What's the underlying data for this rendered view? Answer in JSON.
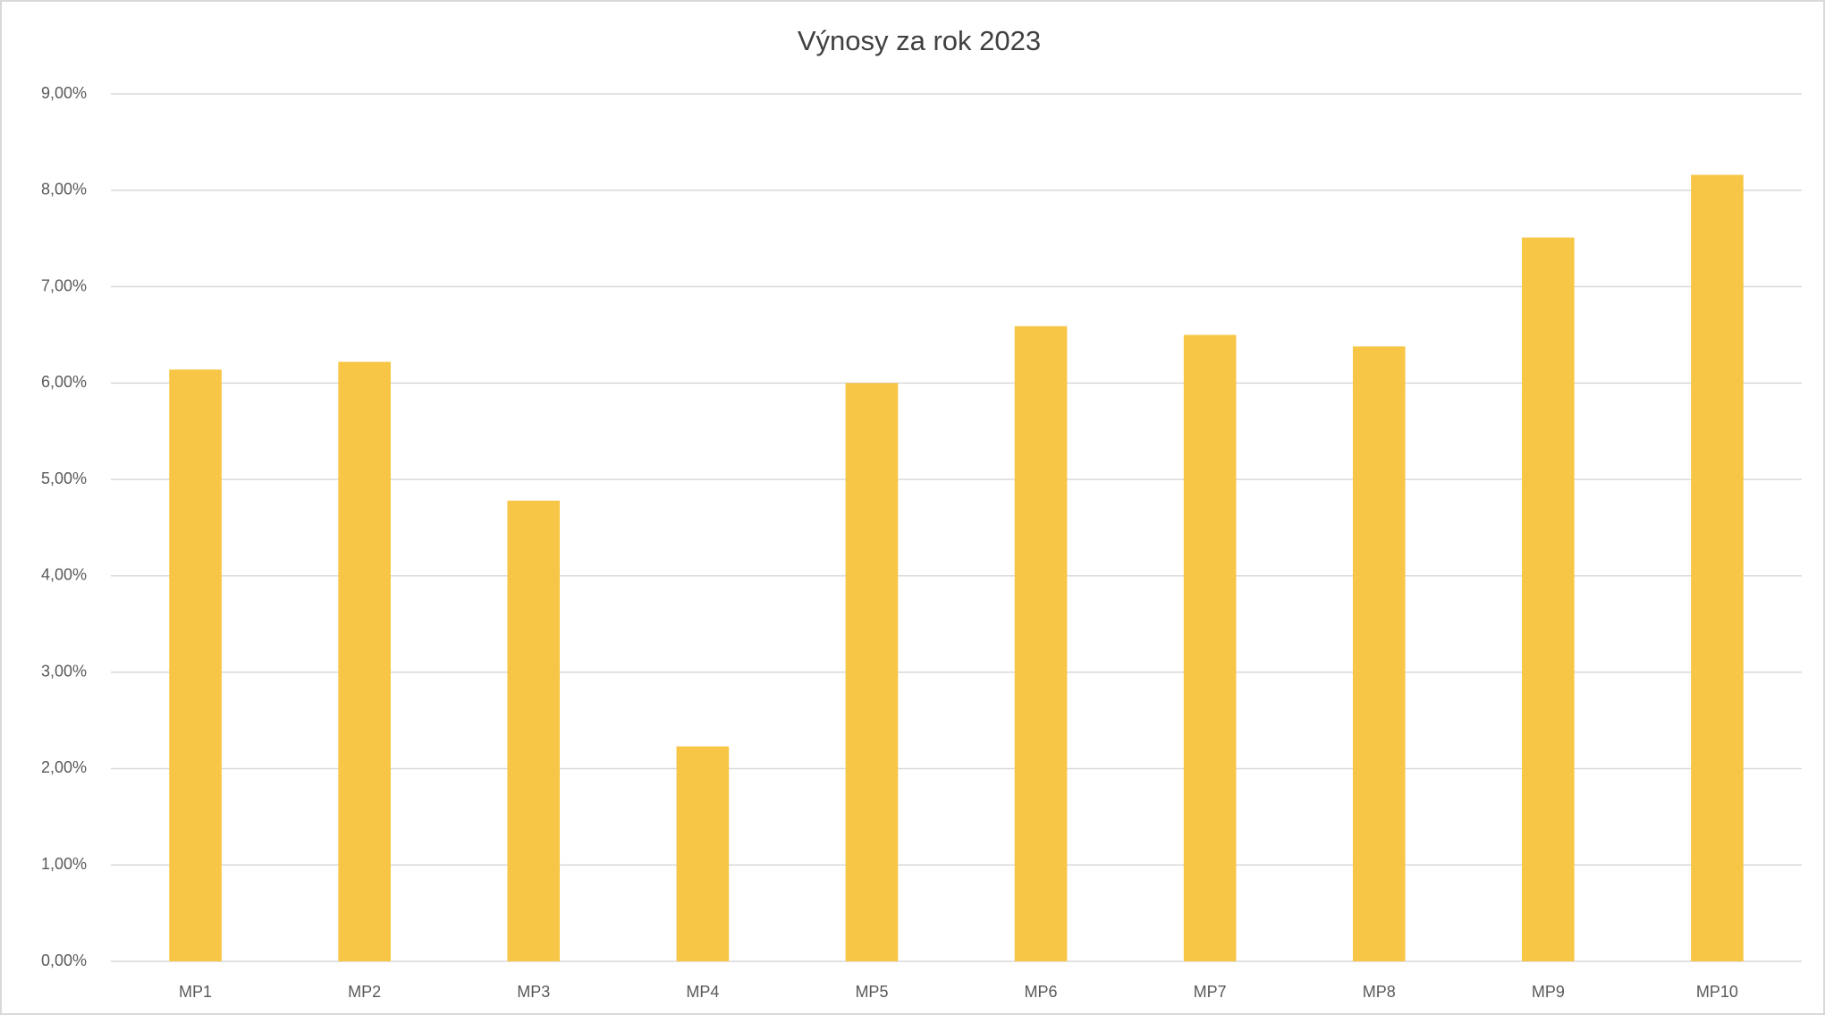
{
  "chart_data": {
    "type": "bar",
    "title": "Výnosy za rok 2023",
    "categories": [
      "MP1",
      "MP2",
      "MP3",
      "MP4",
      "MP5",
      "MP6",
      "MP7",
      "MP8",
      "MP9",
      "MP10"
    ],
    "values": [
      6.14,
      6.22,
      4.78,
      2.23,
      6.0,
      6.59,
      6.5,
      6.38,
      7.51,
      8.16
    ],
    "color": "#f8c646",
    "ylim": [
      0,
      9
    ],
    "yticks": [
      {
        "value": 0,
        "label": "0,00%"
      },
      {
        "value": 1,
        "label": "1,00%"
      },
      {
        "value": 2,
        "label": "2,00%"
      },
      {
        "value": 3,
        "label": "3,00%"
      },
      {
        "value": 4,
        "label": "4,00%"
      },
      {
        "value": 5,
        "label": "5,00%"
      },
      {
        "value": 6,
        "label": "6,00%"
      },
      {
        "value": 7,
        "label": "7,00%"
      },
      {
        "value": 8,
        "label": "8,00%"
      },
      {
        "value": 9,
        "label": "9,00%"
      }
    ],
    "grid": true
  }
}
